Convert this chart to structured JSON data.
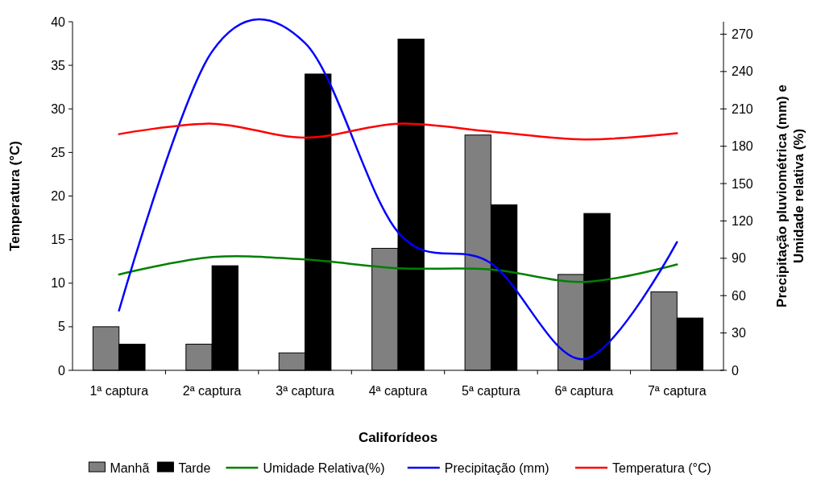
{
  "chart_data": {
    "type": "bar",
    "xlabel": "Califorídeos",
    "ylabel": "Temperatura (°C)",
    "y2label": "Precipitação pluviométrica (mm) e Umidade relativa (%)",
    "categories": [
      "1ª captura",
      "2ª captura",
      "3ª captura",
      "4ª captura",
      "5ª captura",
      "6ª captura",
      "7ª captura"
    ],
    "series": [
      {
        "name": "Manhã",
        "color": "#808080",
        "values": [
          5,
          3,
          2,
          14,
          27,
          11,
          9
        ]
      },
      {
        "name": "Tarde",
        "color": "#000000",
        "values": [
          3,
          12,
          34,
          38,
          19,
          18,
          6
        ]
      },
      {
        "name": "Umidade Relativa(%)",
        "type": "line",
        "axis": "y2",
        "color": "#008000",
        "values": [
          77,
          91,
          89,
          82,
          81,
          71,
          85
        ]
      },
      {
        "name": "Precipitação (mm)",
        "type": "line",
        "axis": "y2",
        "color": "#0000ff",
        "values": [
          48,
          256,
          263,
          111,
          86,
          9,
          103
        ]
      },
      {
        "name": "Temperatura (°C)",
        "type": "line",
        "color": "#ff0000",
        "values": [
          27.1,
          28.3,
          26.7,
          28.3,
          27.4,
          26.5,
          27.2
        ]
      }
    ],
    "ylim": [
      0,
      40
    ],
    "yticks": [
      0,
      5,
      10,
      15,
      20,
      25,
      30,
      35,
      40
    ],
    "y2lim": [
      0,
      280
    ],
    "y2ticks": [
      0,
      30,
      60,
      90,
      120,
      150,
      180,
      210,
      240,
      270
    ],
    "legend": "bottom",
    "grid": false
  }
}
